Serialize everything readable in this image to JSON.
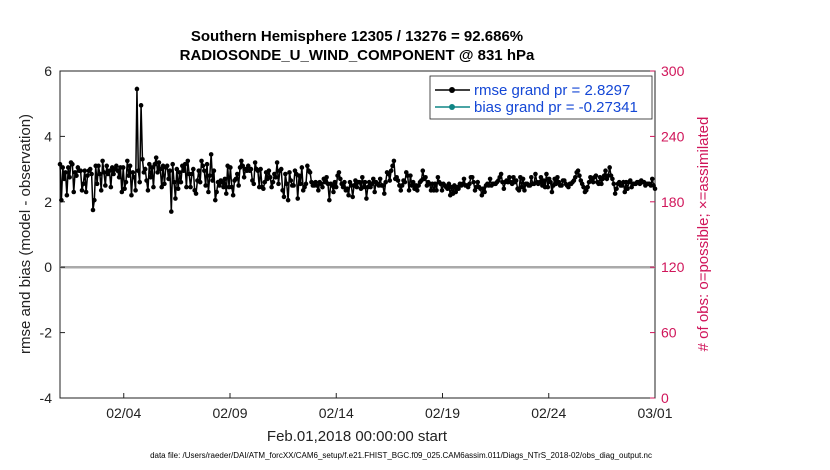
{
  "chart_data": {
    "type": "line",
    "title": "Southern Hemisphere 12305 / 13276 = 92.686%",
    "subtitle": "RADIOSONDE_U_WIND_COMPONENT @ 831 hPa",
    "xlabel": "Feb.01,2018 00:00:00 start",
    "ylabel": "rmse and bias (model - observation)",
    "y2label": "# of obs: o=possible; ×=assimilated",
    "footnote": "data file: /Users/raeder/DAI/ATM_forcXX/CAM6_setup/f.e21.FHIST_BGC.f09_025.CAM6assim.011/Diags_NTrS_2018-02/obs_diag_output.nc",
    "xlim": [
      0,
      28
    ],
    "ylim": [
      -4,
      6
    ],
    "y2lim": [
      0,
      300
    ],
    "yticks": [
      "-4",
      "-2",
      "0",
      "2",
      "4",
      "6"
    ],
    "y2ticks": [
      "0",
      "60",
      "120",
      "180",
      "240",
      "300"
    ],
    "xtick_labels": [
      {
        "x": 3,
        "label": "02/04"
      },
      {
        "x": 8,
        "label": "02/09"
      },
      {
        "x": 13,
        "label": "02/14"
      },
      {
        "x": 18,
        "label": "02/19"
      },
      {
        "x": 23,
        "label": "02/24"
      },
      {
        "x": 28,
        "label": "03/01"
      }
    ],
    "zero_line": 0,
    "colors": {
      "rmse": "#000000",
      "bias": "#0f8585",
      "counts": "#d0155a",
      "legend_text": "#1447d6",
      "zero_line": "#aaaaaa"
    },
    "series": [
      {
        "name": "rmse",
        "legend": "rmse grand pr = 2.8297",
        "values": [
          3.15,
          2.05,
          3.05,
          2.7,
          2.9,
          2.2,
          3.05,
          2.75,
          3.2,
          3.15,
          2.3,
          2.9,
          2.8,
          3.05,
          2.95,
          2.95,
          2.35,
          2.55,
          2.95,
          2.3,
          2.8,
          2.95,
          3.0,
          2.85,
          1.75,
          2.05,
          3.1,
          2.55,
          3.1,
          2.85,
          2.35,
          3.25,
          2.9,
          2.5,
          3.1,
          2.85,
          2.95,
          2.45,
          3.05,
          2.85,
          3.0,
          3.1,
          2.95,
          2.75,
          3.05,
          2.3,
          3.05,
          2.4,
          2.6,
          3.25,
          2.8,
          3.1,
          2.2,
          2.9,
          2.75,
          2.35,
          5.45,
          2.95,
          2.6,
          4.95,
          3.3,
          2.9,
          3.0,
          2.65,
          2.35,
          3.15,
          2.75,
          3.05,
          2.45,
          3.15,
          3.35,
          2.9,
          3.2,
          3.0,
          2.45,
          3.1,
          2.55,
          3.05,
          3.1,
          2.7,
          2.95,
          1.7,
          3.15,
          2.6,
          2.1,
          3.0,
          2.4,
          2.9,
          2.6,
          3.1,
          2.95,
          3.15,
          2.45,
          3.25,
          2.85,
          2.45,
          2.85,
          3.0,
          2.35,
          2.25,
          2.65,
          2.95,
          2.6,
          3.25,
          3.1,
          2.95,
          2.5,
          3.15,
          2.3,
          2.8,
          3.45,
          2.65,
          2.95,
          2.05,
          2.3,
          2.6,
          2.5,
          2.65,
          2.6,
          2.45,
          2.7,
          2.25,
          3.1,
          2.45,
          3.05,
          2.45,
          2.2,
          2.65,
          2.7,
          2.85,
          2.5,
          3.05,
          3.25,
          3.1,
          2.75,
          3.0,
          2.95,
          3.1,
          2.95,
          3.0,
          2.65,
          2.55,
          3.2,
          3.0,
          2.95,
          2.45,
          3.0,
          2.45,
          2.4,
          2.6,
          2.9,
          2.7,
          2.95,
          2.75,
          2.45,
          2.6,
          2.85,
          2.75,
          3.2,
          2.55,
          2.95,
          3.0,
          2.35,
          2.15,
          2.85,
          2.55,
          2.05,
          2.9,
          2.65,
          2.5,
          2.5,
          2.95,
          2.85,
          2.1,
          2.8,
          2.55,
          3.05,
          2.35,
          2.45,
          2.55,
          3.1,
          2.95,
          2.9,
          2.6,
          2.5,
          2.5,
          2.6,
          2.5,
          2.35,
          2.6,
          2.55,
          2.45,
          2.7,
          2.6,
          2.75,
          2.55,
          2.05,
          2.55,
          2.5,
          2.3,
          2.6,
          2.45,
          2.8,
          2.9,
          2.7,
          2.55,
          2.45,
          2.6,
          2.35,
          2.4,
          2.2,
          2.6,
          2.5,
          2.15,
          2.5,
          2.65,
          2.45,
          2.6,
          2.6,
          2.4,
          2.75,
          2.45,
          2.6,
          2.1,
          2.45,
          2.6,
          2.45,
          2.55,
          2.7,
          2.3,
          2.6,
          2.55,
          2.5,
          2.7,
          2.5,
          2.5,
          2.25,
          2.6,
          2.9,
          2.85,
          2.65,
          2.95,
          3.1,
          3.25,
          2.7,
          2.75,
          2.65,
          2.5,
          2.35,
          2.5,
          2.65,
          2.6,
          2.9,
          2.8,
          2.35,
          2.8,
          2.5,
          2.6,
          2.4,
          2.5,
          2.35,
          2.5,
          2.6,
          2.65,
          2.95,
          2.7,
          2.75,
          2.5,
          2.6,
          2.55,
          2.35,
          2.55,
          2.35,
          2.55,
          2.35,
          2.75,
          2.6,
          2.55,
          2.35,
          2.55,
          2.5,
          2.45,
          2.4,
          2.55,
          2.2,
          2.45,
          2.25,
          2.5,
          2.3,
          2.45,
          2.4,
          2.55,
          2.5,
          2.55,
          2.7,
          2.5,
          2.5,
          2.45,
          2.55,
          2.75,
          2.75,
          2.6,
          2.35,
          2.45,
          2.6,
          2.45,
          2.4,
          2.2,
          2.4,
          2.3,
          2.5,
          2.55,
          2.5,
          2.7,
          2.5,
          2.55,
          2.55,
          2.55,
          2.6,
          2.65,
          2.75,
          2.85,
          2.6,
          2.4,
          2.6,
          2.65,
          2.6,
          2.75,
          2.6,
          2.55,
          2.75,
          2.6,
          2.65,
          2.4,
          2.35,
          2.75,
          2.45,
          2.7,
          2.35,
          2.55,
          2.55,
          2.5,
          2.5,
          2.75,
          2.55,
          2.55,
          2.85,
          2.6,
          2.55,
          2.6,
          2.75,
          2.5,
          2.65,
          2.45,
          2.85,
          2.45,
          2.7,
          2.6,
          2.3,
          2.5,
          2.7,
          2.55,
          2.75,
          2.6,
          2.5,
          2.5,
          2.65,
          2.65,
          2.55,
          2.5,
          2.45,
          2.55,
          2.55,
          2.6,
          2.65,
          2.75,
          2.9,
          2.95,
          2.8,
          2.65,
          2.55,
          2.45,
          2.3,
          2.35,
          2.45,
          2.6,
          2.75,
          2.7,
          2.6,
          2.75,
          2.8,
          2.6,
          2.55,
          2.75,
          2.55,
          2.7,
          2.8,
          2.95,
          2.7,
          2.8,
          3.05,
          2.8,
          2.7,
          2.55,
          2.25,
          2.4,
          2.55,
          2.6,
          2.5,
          2.5,
          2.6,
          2.3,
          2.6,
          2.4,
          2.6,
          2.65,
          2.45,
          2.55,
          2.55,
          2.55,
          2.6,
          2.6,
          2.55,
          2.65,
          2.6,
          2.6,
          2.5,
          2.55,
          2.55,
          2.55,
          2.5,
          2.7,
          2.5,
          2.4
        ]
      },
      {
        "name": "bias",
        "legend": "bias grand pr = -0.27341",
        "values": []
      }
    ]
  }
}
